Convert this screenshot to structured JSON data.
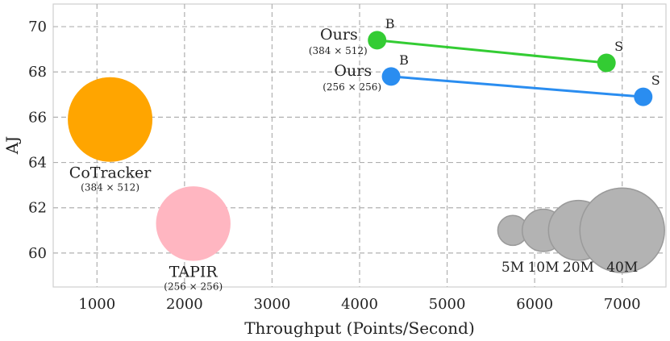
{
  "chart_data": {
    "type": "scatter",
    "xlabel": "Throughput (Points/Second)",
    "ylabel": "AJ",
    "xlim": [
      500,
      7500
    ],
    "ylim": [
      58.5,
      71
    ],
    "xticks": [
      "1000",
      "2000",
      "3000",
      "4000",
      "5000",
      "6000",
      "7000"
    ],
    "yticks": [
      "60",
      "62",
      "64",
      "66",
      "68",
      "70"
    ],
    "grid": true,
    "points": [
      {
        "label": "CoTracker",
        "sublabel": "(384 × 512)",
        "x": 1150,
        "y": 65.9,
        "params_m": 40,
        "color": "#ffa500"
      },
      {
        "label": "TAPIR",
        "sublabel": "(256 × 256)",
        "x": 2100,
        "y": 61.3,
        "params_m": 31,
        "color": "#ffb6c1"
      }
    ],
    "series": [
      {
        "label": "Ours",
        "sublabel": "(384 × 512)",
        "color": "#33cc33",
        "points": [
          {
            "variant": "B",
            "x": 4200,
            "y": 69.4
          },
          {
            "variant": "S",
            "x": 6820,
            "y": 68.4
          }
        ]
      },
      {
        "label": "Ours",
        "sublabel": "(256 × 256)",
        "color": "#2a8df0",
        "points": [
          {
            "variant": "B",
            "x": 4360,
            "y": 67.8
          },
          {
            "variant": "S",
            "x": 7240,
            "y": 66.9
          }
        ]
      }
    ],
    "size_legend": {
      "color": "#b3b3b3",
      "y": 61,
      "items": [
        {
          "label": "5M",
          "x": 5750,
          "params_m": 5
        },
        {
          "label": "10M",
          "x": 6100,
          "params_m": 10
        },
        {
          "label": "20M",
          "x": 6500,
          "params_m": 20
        },
        {
          "label": "40M",
          "x": 7000,
          "params_m": 40
        }
      ]
    }
  }
}
